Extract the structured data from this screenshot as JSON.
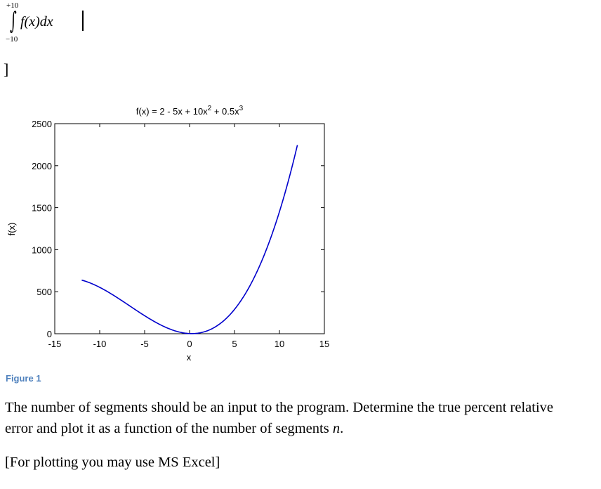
{
  "integral": {
    "upper_limit": "+10",
    "lower_limit": "−10",
    "sign": "∫",
    "integrand": "f(x)dx"
  },
  "bracket": "]",
  "chart_data": {
    "type": "line",
    "title": "f(x) = 2 - 5x + 10x",
    "title_sup1": "2",
    "title_mid": " + 0.5x",
    "title_sup2": "3",
    "xlabel": "x",
    "ylabel": "f(x)",
    "xlim": [
      -15,
      15
    ],
    "ylim": [
      0,
      2500
    ],
    "xticks": [
      -15,
      -10,
      -5,
      0,
      5,
      10,
      15
    ],
    "xtick_labels": [
      "-15",
      "-10",
      "-5",
      "0",
      "5",
      "10",
      "15"
    ],
    "yticks": [
      0,
      500,
      1000,
      1500,
      2000,
      2500
    ],
    "ytick_labels": [
      "0",
      "500",
      "1000",
      "1500",
      "2000",
      "2500"
    ],
    "series": [
      {
        "function": "2 - 5x + 10x^2 + 0.5x^3",
        "coefficients": [
          2,
          -5,
          10,
          0.5
        ],
        "x_range": [
          -12,
          12
        ],
        "color": "#0000cc"
      }
    ],
    "grid": false
  },
  "figure_caption": "Figure 1",
  "paragraphs": {
    "p1_line1": "The number of segments should be an input to the program. Determine the true percent relative",
    "p1_line2_a": "error and plot it as a function of the number of segments ",
    "p1_line2_var": "n",
    "p1_line2_b": ".",
    "p2": "[For plotting you may use MS Excel]"
  }
}
